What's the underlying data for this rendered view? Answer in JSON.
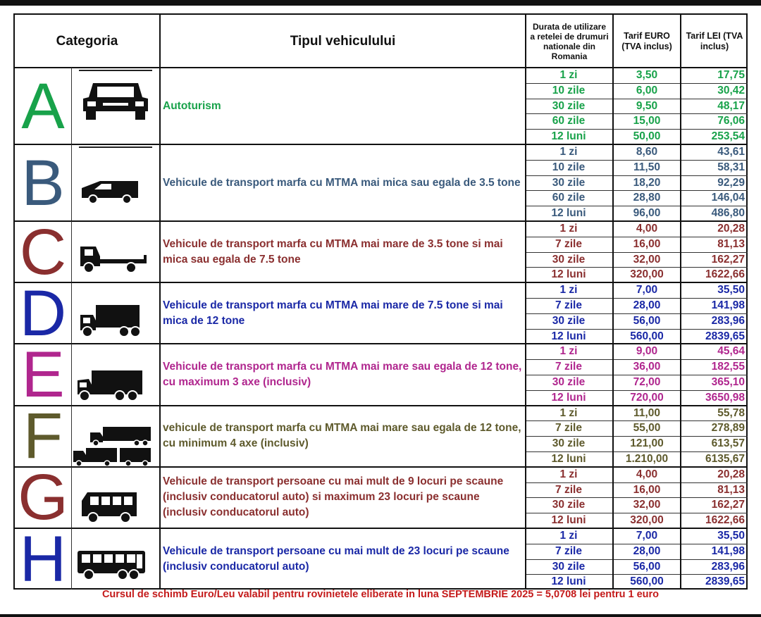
{
  "header": {
    "category": "Categoria",
    "vehicle_type": "Tipul vehiculului",
    "duration": "Durata de utilizare a retelei de drumuri nationale din Romania",
    "tariff_eur": "Tarif EURO (TVA inclus)",
    "tariff_lei": "Tarif LEI (TVA inclus)"
  },
  "categories": [
    {
      "letter": "A",
      "color": "#18a24a",
      "icon": "car-icon",
      "description": "Autoturism",
      "rows": [
        {
          "duration": "1 zi",
          "eur": "3,50",
          "lei": "17,75"
        },
        {
          "duration": "10 zile",
          "eur": "6,00",
          "lei": "30,42"
        },
        {
          "duration": "30 zile",
          "eur": "9,50",
          "lei": "48,17"
        },
        {
          "duration": "60 zile",
          "eur": "15,00",
          "lei": "76,06"
        },
        {
          "duration": "12 luni",
          "eur": "50,00",
          "lei": "253,54"
        }
      ]
    },
    {
      "letter": "B",
      "color": "#3a5a7c",
      "icon": "van-icon",
      "description": "Vehicule de transport marfa cu MTMA mai mica sau egala de 3.5 tone",
      "rows": [
        {
          "duration": "1 zi",
          "eur": "8,60",
          "lei": "43,61"
        },
        {
          "duration": "10 zile",
          "eur": "11,50",
          "lei": "58,31"
        },
        {
          "duration": "30 zile",
          "eur": "18,20",
          "lei": "92,29"
        },
        {
          "duration": "60 zile",
          "eur": "28,80",
          "lei": "146,04"
        },
        {
          "duration": "12 luni",
          "eur": "96,00",
          "lei": "486,80"
        }
      ]
    },
    {
      "letter": "C",
      "color": "#8a2f2f",
      "icon": "flatbed-truck-icon",
      "description": "Vehicule de transport marfa cu MTMA mai mare de 3.5 tone si mai mica sau egala de 7.5 tone",
      "rows": [
        {
          "duration": "1 zi",
          "eur": "4,00",
          "lei": "20,28"
        },
        {
          "duration": "7 zile",
          "eur": "16,00",
          "lei": "81,13"
        },
        {
          "duration": "30 zile",
          "eur": "32,00",
          "lei": "162,27"
        },
        {
          "duration": "12 luni",
          "eur": "320,00",
          "lei": "1622,66"
        }
      ]
    },
    {
      "letter": "D",
      "color": "#1a28a6",
      "icon": "box-truck-icon",
      "description": "Vehicule de transport marfa cu MTMA mai mare de 7.5 tone si mai mica de 12 tone",
      "rows": [
        {
          "duration": "1 zi",
          "eur": "7,00",
          "lei": "35,50"
        },
        {
          "duration": "7 zile",
          "eur": "28,00",
          "lei": "141,98"
        },
        {
          "duration": "30 zile",
          "eur": "56,00",
          "lei": "283,96"
        },
        {
          "duration": "12 luni",
          "eur": "560,00",
          "lei": "2839,65"
        }
      ]
    },
    {
      "letter": "E",
      "color": "#b0268e",
      "icon": "large-truck-icon",
      "description": "Vehicule de transport marfa cu MTMA mai mare sau egala de 12 tone, cu maximum 3 axe (inclusiv)",
      "rows": [
        {
          "duration": "1 zi",
          "eur": "9,00",
          "lei": "45,64"
        },
        {
          "duration": "7 zile",
          "eur": "36,00",
          "lei": "182,55"
        },
        {
          "duration": "30 zile",
          "eur": "72,00",
          "lei": "365,10"
        },
        {
          "duration": "12 luni",
          "eur": "720,00",
          "lei": "3650,98"
        }
      ]
    },
    {
      "letter": "F",
      "color": "#5e5a2c",
      "icon": "truck-trailer-icon",
      "description": "vehicule de transport marfa cu MTMA mai mare sau egala de 12 tone, cu minimum 4 axe (inclusiv)",
      "rows": [
        {
          "duration": "1 zi",
          "eur": "11,00",
          "lei": "55,78"
        },
        {
          "duration": "7 zile",
          "eur": "55,00",
          "lei": "278,89"
        },
        {
          "duration": "30 zile",
          "eur": "121,00",
          "lei": "613,57"
        },
        {
          "duration": "12 luni",
          "eur": "1.210,00",
          "lei": "6135,67"
        }
      ]
    },
    {
      "letter": "G",
      "color": "#8a2f2f",
      "icon": "minibus-icon",
      "description": "Vehicule de transport persoane cu mai mult de 9 locuri pe scaune (inclusiv conducatorul auto) si maximum 23 locuri pe scaune (inclusiv conducatorul auto)",
      "rows": [
        {
          "duration": "1 zi",
          "eur": "4,00",
          "lei": "20,28"
        },
        {
          "duration": "7 zile",
          "eur": "16,00",
          "lei": "81,13"
        },
        {
          "duration": "30 zile",
          "eur": "32,00",
          "lei": "162,27"
        },
        {
          "duration": "12 luni",
          "eur": "320,00",
          "lei": "1622,66"
        }
      ]
    },
    {
      "letter": "H",
      "color": "#1a28a6",
      "icon": "bus-icon",
      "description": "Vehicule de transport persoane cu mai mult de 23 locuri pe scaune (inclusiv conducatorul auto)",
      "rows": [
        {
          "duration": "1 zi",
          "eur": "7,00",
          "lei": "35,50"
        },
        {
          "duration": "7 zile",
          "eur": "28,00",
          "lei": "141,98"
        },
        {
          "duration": "30 zile",
          "eur": "56,00",
          "lei": "283,96"
        },
        {
          "duration": "12 luni",
          "eur": "560,00",
          "lei": "2839,65"
        }
      ]
    }
  ],
  "footer": "Cursul de schimb Euro/Leu valabil pentru rovinietele eliberate in luna SEPTEMBRIE 2025 = 5,0708 lei pentru 1 euro"
}
